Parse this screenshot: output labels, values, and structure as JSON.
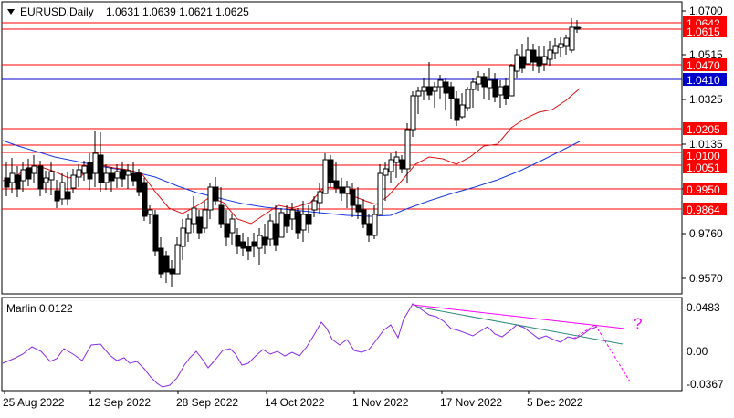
{
  "header": {
    "symbol": "EURUSD,Daily",
    "ohlc": "1.0631 1.0639 1.0621 1.0625"
  },
  "indicator": {
    "label": "Marlin 0.0122",
    "question_mark": "?"
  },
  "price_axis": {
    "ticks": [
      "1.0700",
      "1.0515",
      "1.0325",
      "1.0135",
      "0.9950",
      "0.9760",
      "0.9570"
    ]
  },
  "level_tags": [
    {
      "text": "1.0642",
      "color": "#ff0000"
    },
    {
      "text": "1.0615",
      "color": "#ff0000"
    },
    {
      "text": "1.0470",
      "color": "#ff0000"
    },
    {
      "text": "1.0410",
      "color": "#0000cc"
    },
    {
      "text": "1.0205",
      "color": "#ff0000"
    },
    {
      "text": "1.0100",
      "color": "#ff0000"
    },
    {
      "text": "1.0051",
      "color": "#ff0000"
    },
    {
      "text": "0.9950",
      "color": "#ff0000"
    },
    {
      "text": "0.9864",
      "color": "#ff0000"
    }
  ],
  "osc_axis": {
    "ticks": [
      "0.0483",
      "0.00",
      "-0.0367"
    ]
  },
  "time_axis": {
    "ticks": [
      "25 Aug 2022",
      "12 Sep 2022",
      "28 Sep 2022",
      "14 Oct 2022",
      "1 Nov 2022",
      "17 Nov 2022",
      "5 Dec 2022"
    ]
  },
  "colors": {
    "bull": "#ffffff",
    "bear": "#000000",
    "ma_fast": "#e01010",
    "ma_slow": "#1a3adf",
    "level_red": "#ff0000",
    "level_blue": "#0000cc",
    "marlin": "#8a2be2",
    "trend_magenta": "#ff00ff",
    "trend_teal": "#2e8b7a"
  }
}
